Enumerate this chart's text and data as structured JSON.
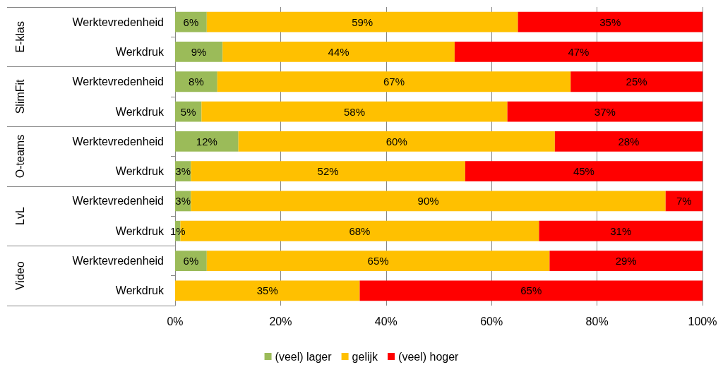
{
  "chart_data": {
    "type": "bar",
    "orientation": "horizontal",
    "stacked": true,
    "categories": [
      "Werktevredenheid",
      "Werkdruk",
      "Werktevredenheid",
      "Werkdruk",
      "Werktevredenheid",
      "Werkdruk",
      "Werktevredenheid",
      "Werkdruk",
      "Werktevredenheid",
      "Werkdruk"
    ],
    "annotations": [
      "E-klas",
      "SlimFit",
      "O-teams",
      "LvL",
      "Video"
    ],
    "series": [
      {
        "name": "(veel) lager",
        "color": "#9bbb59",
        "values": [
          6,
          9,
          8,
          5,
          12,
          3,
          3,
          1,
          6,
          0
        ],
        "value_labels": [
          "6%",
          "9%",
          "8%",
          "5%",
          "12%",
          "3%",
          "3%",
          "1%",
          "6%",
          null
        ]
      },
      {
        "name": "gelijk",
        "color": "#ffc000",
        "values": [
          59,
          44,
          67,
          58,
          60,
          52,
          90,
          68,
          65,
          35
        ],
        "value_labels": [
          "59%",
          "44%",
          "67%",
          "58%",
          "60%",
          "52%",
          "90%",
          "68%",
          "65%",
          "35%"
        ]
      },
      {
        "name": "(veel) hoger",
        "color": "#ff0000",
        "values": [
          35,
          47,
          25,
          37,
          28,
          45,
          7,
          31,
          29,
          65
        ],
        "value_labels": [
          "35%",
          "47%",
          "25%",
          "37%",
          "28%",
          "45%",
          "7%",
          "31%",
          "29%",
          "65%"
        ]
      }
    ],
    "xlim": [
      0,
      100
    ],
    "xticks": [
      {
        "value": 0,
        "label": "0%"
      },
      {
        "value": 20,
        "label": "20%"
      },
      {
        "value": 40,
        "label": "40%"
      },
      {
        "value": 60,
        "label": "60%"
      },
      {
        "value": 80,
        "label": "80%"
      },
      {
        "value": 100,
        "label": "100%"
      }
    ],
    "grid": "x",
    "legend": "bottom"
  }
}
